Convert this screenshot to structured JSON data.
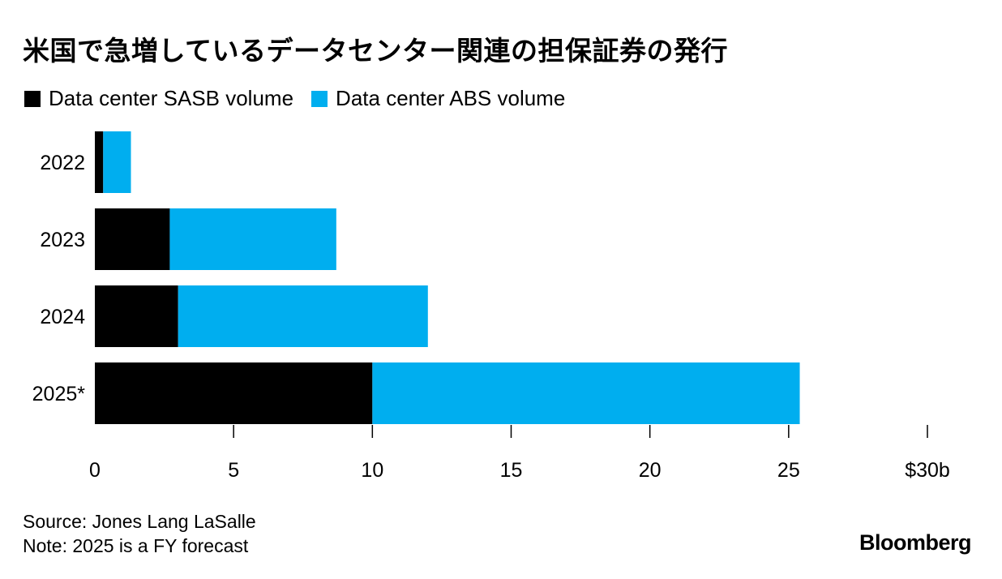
{
  "chart_data": {
    "type": "bar",
    "orientation": "horizontal",
    "stacked": true,
    "title": "米国で急増しているデータセンター関連の担保証券の発行",
    "categories": [
      "2022",
      "2023",
      "2024",
      "2025*"
    ],
    "series": [
      {
        "name": "Data center SASB volume",
        "color": "#000000",
        "values": [
          0.3,
          2.7,
          3.0,
          10.0
        ]
      },
      {
        "name": "Data center ABS volume",
        "color": "#00AEEF",
        "values": [
          1.0,
          6.0,
          9.0,
          15.4
        ]
      }
    ],
    "xlim": [
      0,
      30
    ],
    "xticks": [
      0,
      5,
      10,
      15,
      20,
      25,
      30
    ],
    "xtick_labels": [
      "0",
      "5",
      "10",
      "15",
      "20",
      "25",
      "$30b"
    ],
    "grid": false,
    "legend_position": "top-left"
  },
  "footer": {
    "source": "Source: Jones Lang LaSalle",
    "note": "Note: 2025 is a FY forecast"
  },
  "brand": "Bloomberg"
}
